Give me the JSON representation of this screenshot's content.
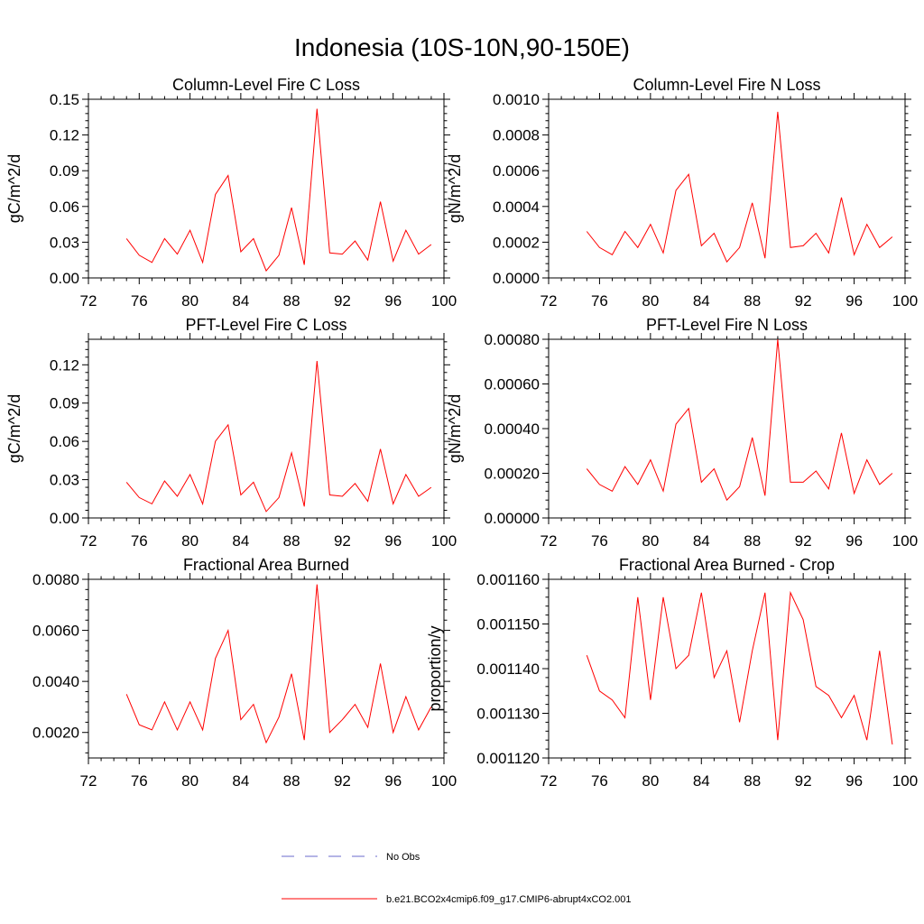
{
  "page_title": "Indonesia (10S-10N,90-150E)",
  "colors": {
    "series": "#ff0000",
    "obs": "#6a6acd",
    "axis": "#000000",
    "background": "#ffffff"
  },
  "legend": {
    "entries": [
      {
        "label": "No Obs",
        "style": "dashed",
        "color": "#6a6acd"
      },
      {
        "label": "b.e21.BCO2x4cmip6.f09_g17.CMIP6-abrupt4xCO2.001",
        "style": "solid",
        "color": "#ff0000"
      }
    ]
  },
  "chart_data": [
    {
      "type": "line",
      "title": "Column-Level Fire C Loss",
      "ylabel": "gC/m^2/d",
      "xlabel": "",
      "xlim": [
        72,
        100
      ],
      "ylim": [
        0,
        0.15
      ],
      "xticks": [
        "72",
        "76",
        "80",
        "84",
        "88",
        "92",
        "96",
        "100"
      ],
      "yticks": [
        "0.00",
        "0.03",
        "0.06",
        "0.09",
        "0.12",
        "0.15"
      ],
      "x": [
        75,
        76,
        77,
        78,
        79,
        80,
        81,
        82,
        83,
        84,
        85,
        86,
        87,
        88,
        89,
        90,
        91,
        92,
        93,
        94,
        95,
        96,
        97,
        98,
        99
      ],
      "series": [
        {
          "name": "b.e21.BCO2x4cmip6.f09_g17.CMIP6-abrupt4xCO2.001",
          "values": [
            0.033,
            0.019,
            0.013,
            0.033,
            0.02,
            0.04,
            0.013,
            0.07,
            0.086,
            0.022,
            0.033,
            0.006,
            0.019,
            0.059,
            0.011,
            0.142,
            0.021,
            0.02,
            0.031,
            0.015,
            0.064,
            0.014,
            0.04,
            0.02,
            0.028
          ]
        }
      ]
    },
    {
      "type": "line",
      "title": "Column-Level Fire N Loss",
      "ylabel": "gN/m^2/d",
      "xlabel": "",
      "xlim": [
        72,
        100
      ],
      "ylim": [
        0,
        0.001
      ],
      "xticks": [
        "72",
        "76",
        "80",
        "84",
        "88",
        "92",
        "96",
        "100"
      ],
      "yticks": [
        "0.0000",
        "0.0002",
        "0.0004",
        "0.0006",
        "0.0008",
        "0.0010"
      ],
      "x": [
        75,
        76,
        77,
        78,
        79,
        80,
        81,
        82,
        83,
        84,
        85,
        86,
        87,
        88,
        89,
        90,
        91,
        92,
        93,
        94,
        95,
        96,
        97,
        98,
        99
      ],
      "series": [
        {
          "name": "b.e21.BCO2x4cmip6.f09_g17.CMIP6-abrupt4xCO2.001",
          "values": [
            0.00026,
            0.00017,
            0.00013,
            0.00026,
            0.00017,
            0.0003,
            0.00014,
            0.00049,
            0.00058,
            0.00018,
            0.00025,
            9e-05,
            0.00017,
            0.00042,
            0.00011,
            0.00093,
            0.00017,
            0.00018,
            0.00025,
            0.00014,
            0.00045,
            0.00013,
            0.0003,
            0.00017,
            0.00023
          ]
        }
      ]
    },
    {
      "type": "line",
      "title": "PFT-Level Fire C Loss",
      "ylabel": "gC/m^2/d",
      "xlabel": "",
      "xlim": [
        72,
        100
      ],
      "ylim": [
        0,
        0.14
      ],
      "xticks": [
        "72",
        "76",
        "80",
        "84",
        "88",
        "92",
        "96",
        "100"
      ],
      "yticks": [
        "0.00",
        "0.03",
        "0.06",
        "0.09",
        "0.12"
      ],
      "x": [
        75,
        76,
        77,
        78,
        79,
        80,
        81,
        82,
        83,
        84,
        85,
        86,
        87,
        88,
        89,
        90,
        91,
        92,
        93,
        94,
        95,
        96,
        97,
        98,
        99
      ],
      "series": [
        {
          "name": "b.e21.BCO2x4cmip6.f09_g17.CMIP6-abrupt4xCO2.001",
          "values": [
            0.028,
            0.016,
            0.011,
            0.029,
            0.017,
            0.034,
            0.011,
            0.06,
            0.073,
            0.018,
            0.028,
            0.005,
            0.016,
            0.051,
            0.009,
            0.123,
            0.018,
            0.017,
            0.027,
            0.013,
            0.054,
            0.011,
            0.034,
            0.017,
            0.024
          ]
        }
      ]
    },
    {
      "type": "line",
      "title": "PFT-Level Fire N Loss",
      "ylabel": "gN/m^2/d",
      "xlabel": "",
      "xlim": [
        72,
        100
      ],
      "ylim": [
        0,
        0.0008
      ],
      "xticks": [
        "72",
        "76",
        "80",
        "84",
        "88",
        "92",
        "96",
        "100"
      ],
      "yticks": [
        "0.00000",
        "0.00020",
        "0.00040",
        "0.00060",
        "0.00080"
      ],
      "x": [
        75,
        76,
        77,
        78,
        79,
        80,
        81,
        82,
        83,
        84,
        85,
        86,
        87,
        88,
        89,
        90,
        91,
        92,
        93,
        94,
        95,
        96,
        97,
        98,
        99
      ],
      "series": [
        {
          "name": "b.e21.BCO2x4cmip6.f09_g17.CMIP6-abrupt4xCO2.001",
          "values": [
            0.00022,
            0.00015,
            0.00012,
            0.00023,
            0.00015,
            0.00026,
            0.00012,
            0.00042,
            0.00049,
            0.00016,
            0.00022,
            8e-05,
            0.00014,
            0.00036,
            0.0001,
            0.0008,
            0.00016,
            0.00016,
            0.00021,
            0.00013,
            0.00038,
            0.00011,
            0.00026,
            0.00015,
            0.0002
          ]
        }
      ]
    },
    {
      "type": "line",
      "title": "Fractional Area Burned",
      "ylabel": "",
      "xlabel": "",
      "xlim": [
        72,
        100
      ],
      "ylim": [
        0.001,
        0.008
      ],
      "xticks": [
        "72",
        "76",
        "80",
        "84",
        "88",
        "92",
        "96",
        "100"
      ],
      "yticks": [
        "0.0020",
        "0.0040",
        "0.0060",
        "0.0080"
      ],
      "x": [
        75,
        76,
        77,
        78,
        79,
        80,
        81,
        82,
        83,
        84,
        85,
        86,
        87,
        88,
        89,
        90,
        91,
        92,
        93,
        94,
        95,
        96,
        97,
        98,
        99
      ],
      "series": [
        {
          "name": "b.e21.BCO2x4cmip6.f09_g17.CMIP6-abrupt4xCO2.001",
          "values": [
            0.0035,
            0.0023,
            0.0021,
            0.0032,
            0.0021,
            0.0032,
            0.0021,
            0.0049,
            0.006,
            0.0025,
            0.0031,
            0.0016,
            0.0026,
            0.0043,
            0.0017,
            0.0078,
            0.002,
            0.0025,
            0.0031,
            0.0022,
            0.0047,
            0.002,
            0.0034,
            0.0021,
            0.003
          ]
        }
      ]
    },
    {
      "type": "line",
      "title": "Fractional Area Burned - Crop",
      "ylabel": "proportion/y",
      "xlabel": "",
      "xlim": [
        72,
        100
      ],
      "ylim": [
        0.00112,
        0.00116
      ],
      "xticks": [
        "72",
        "76",
        "80",
        "84",
        "88",
        "92",
        "96",
        "100"
      ],
      "yticks": [
        "0.001120",
        "0.001130",
        "0.001140",
        "0.001150",
        "0.001160"
      ],
      "x": [
        75,
        76,
        77,
        78,
        79,
        80,
        81,
        82,
        83,
        84,
        85,
        86,
        87,
        88,
        89,
        90,
        91,
        92,
        93,
        94,
        95,
        96,
        97,
        98,
        99
      ],
      "series": [
        {
          "name": "b.e21.BCO2x4cmip6.f09_g17.CMIP6-abrupt4xCO2.001",
          "values": [
            0.001143,
            0.001135,
            0.001133,
            0.001129,
            0.001156,
            0.001133,
            0.001156,
            0.00114,
            0.001143,
            0.001157,
            0.001138,
            0.001144,
            0.001128,
            0.001144,
            0.001157,
            0.001124,
            0.001157,
            0.001151,
            0.001136,
            0.001134,
            0.001129,
            0.001134,
            0.001124,
            0.001144,
            0.001123
          ]
        }
      ]
    }
  ]
}
